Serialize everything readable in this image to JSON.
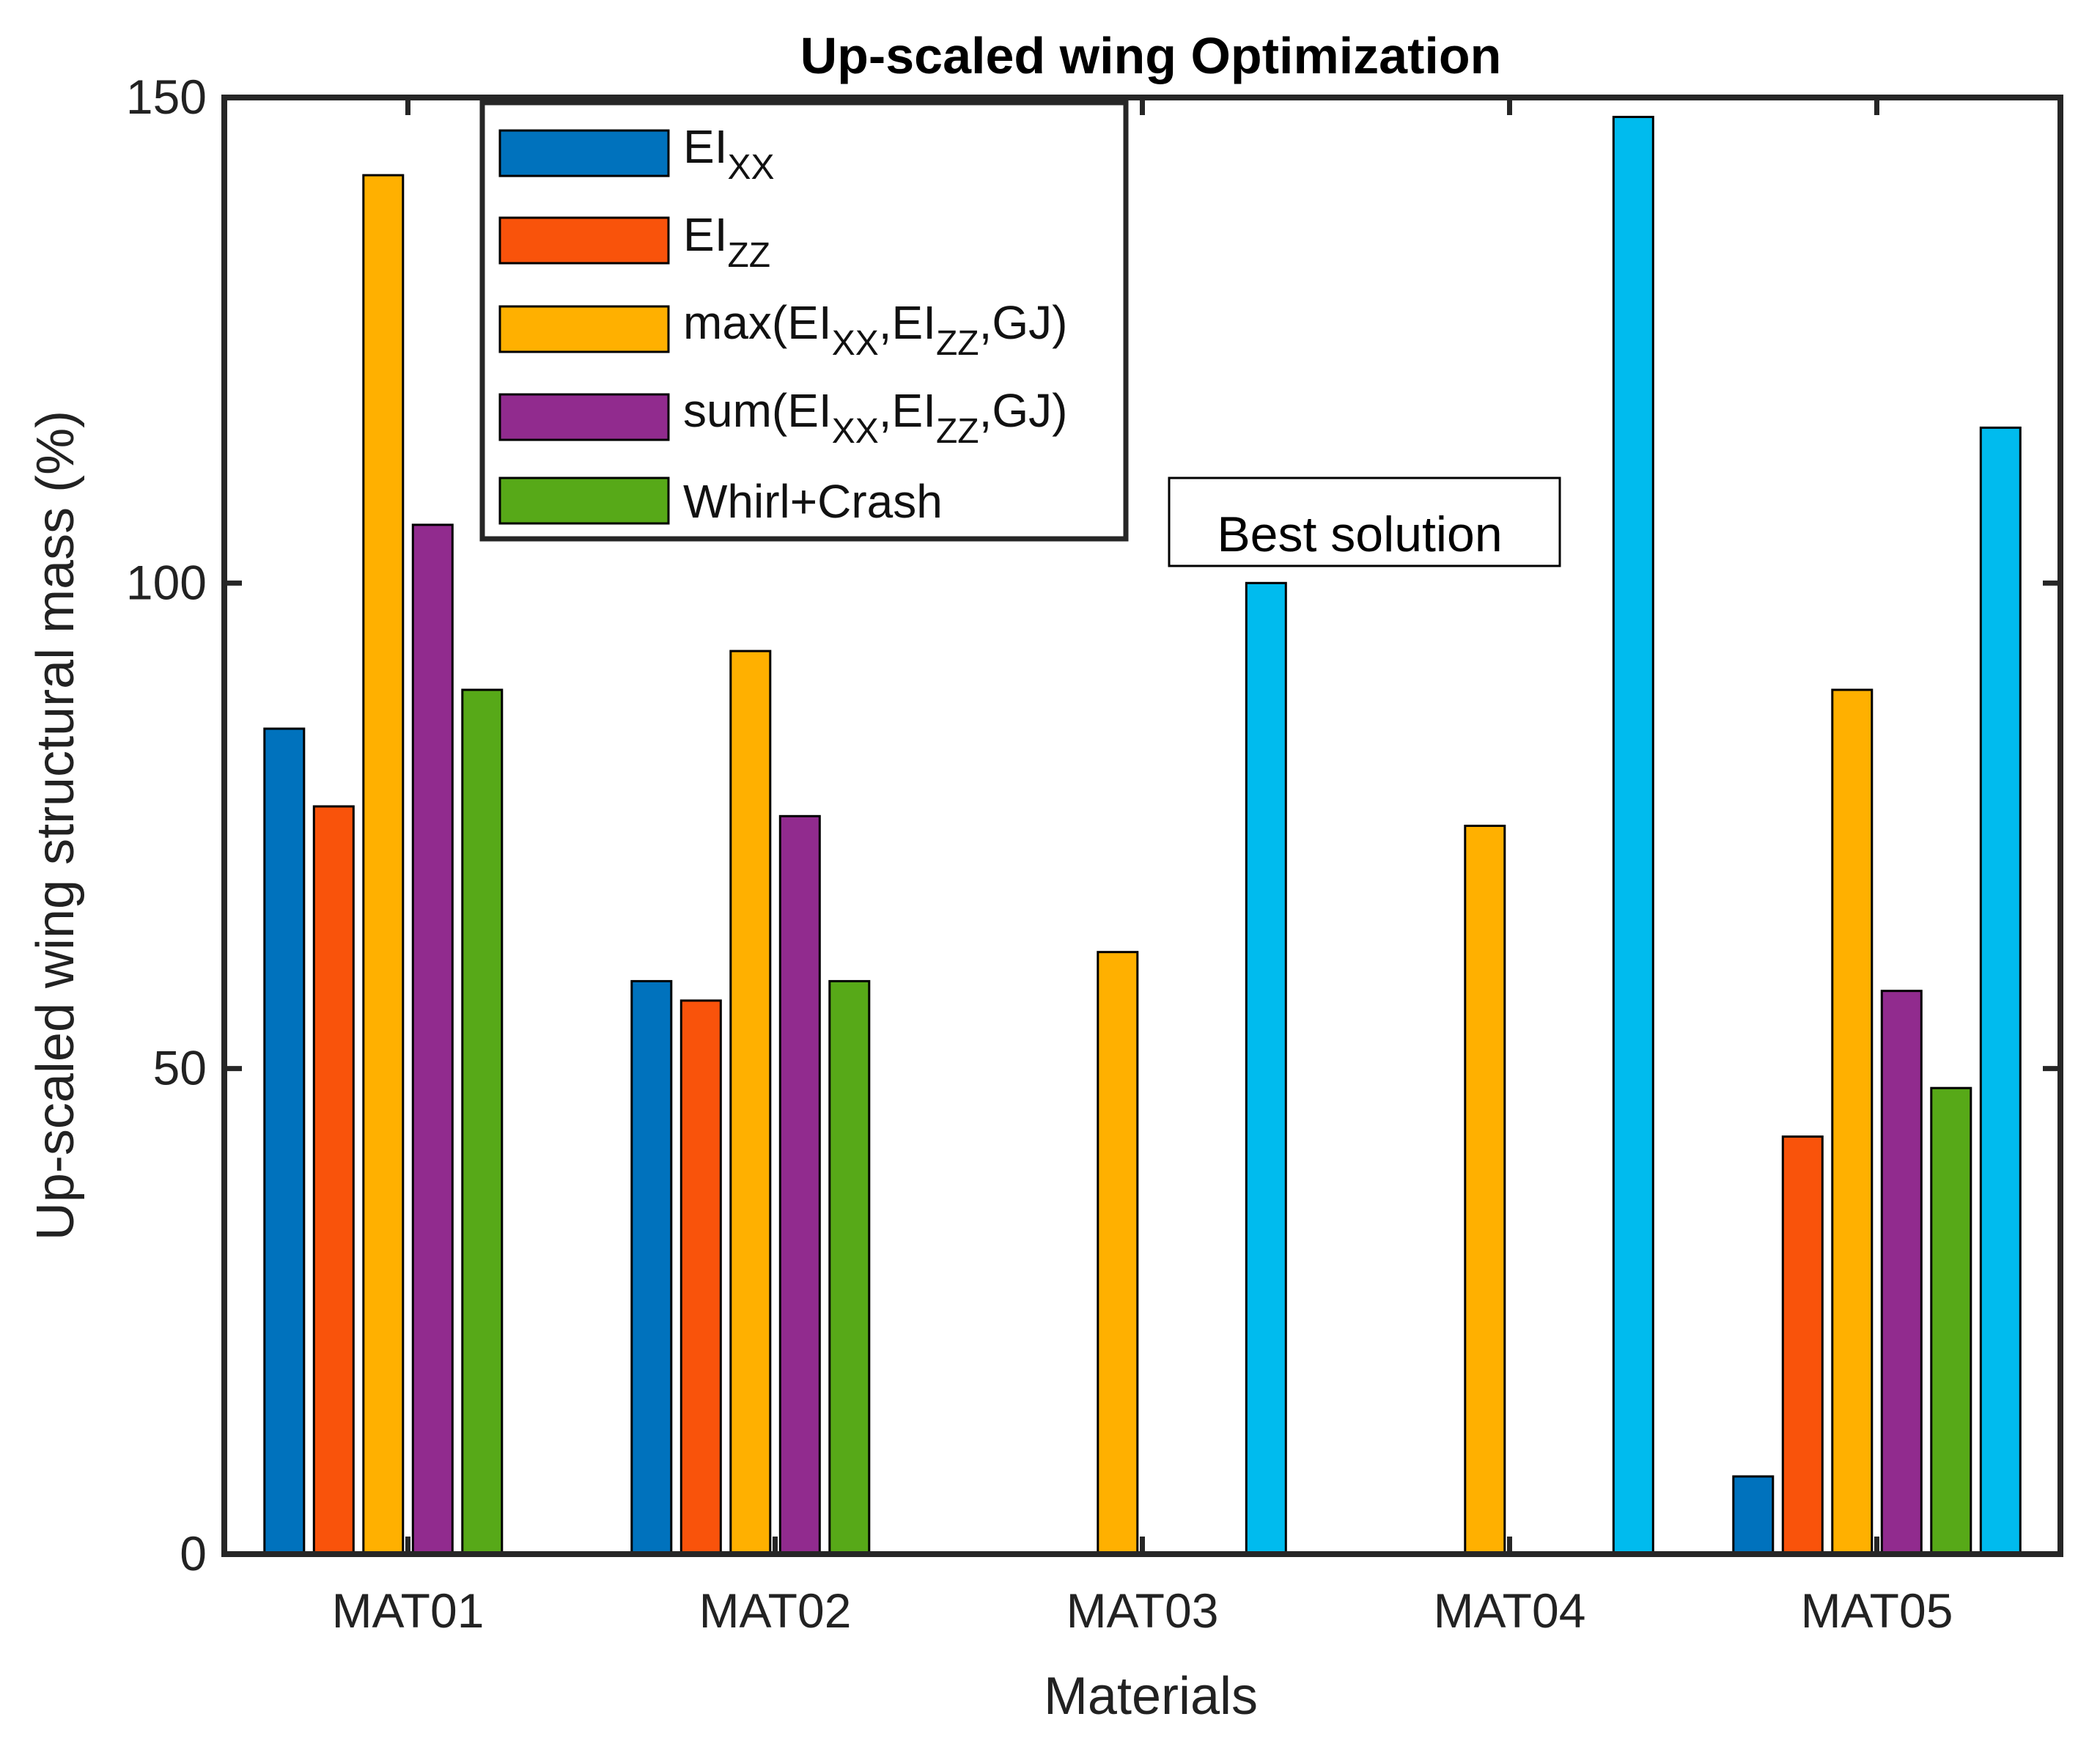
{
  "chart_data": {
    "type": "bar",
    "title": "Up-scaled wing Optimization",
    "xlabel": "Materials",
    "ylabel": "Up-scaled wing structural mass (%)",
    "ylim": [
      0,
      150
    ],
    "yticks": [
      0,
      50,
      100,
      150
    ],
    "categories": [
      "MAT01",
      "MAT02",
      "MAT03",
      "MAT04",
      "MAT05"
    ],
    "grid": false,
    "legend_position": "top-left",
    "series": [
      {
        "name": "EI_XX",
        "label": {
          "base": "EI",
          "sub": "XX"
        },
        "color": "#0072BD",
        "values": [
          85,
          59,
          0,
          0,
          8
        ]
      },
      {
        "name": "EI_ZZ",
        "label": {
          "base": "EI",
          "sub": "ZZ"
        },
        "color": "#F9530B",
        "values": [
          77,
          57,
          0,
          0,
          43
        ]
      },
      {
        "name": "max(EI_XX,EI_ZZ,GJ)",
        "label": {
          "pre": "max(EI",
          "sub1": "XX",
          "mid": ",EI",
          "sub2": "ZZ",
          "post": ",GJ)"
        },
        "color": "#FFB000",
        "values": [
          142,
          93,
          62,
          75,
          89
        ]
      },
      {
        "name": "sum(EI_XX,EI_ZZ,GJ)",
        "label": {
          "pre": "sum(EI",
          "sub1": "XX",
          "mid": ",EI",
          "sub2": "ZZ",
          "post": ",GJ)"
        },
        "color": "#912B8E",
        "values": [
          106,
          76,
          0,
          0,
          58
        ]
      },
      {
        "name": "Whirl+Crash",
        "label": {
          "base": "Whirl+Crash"
        },
        "color": "#57A918",
        "values": [
          89,
          59,
          0,
          0,
          48
        ]
      },
      {
        "color": "#00BBEE",
        "values": [
          0,
          0,
          100,
          148,
          116
        ]
      }
    ],
    "annotation": {
      "text": "Best solution",
      "category": "MAT03"
    }
  }
}
